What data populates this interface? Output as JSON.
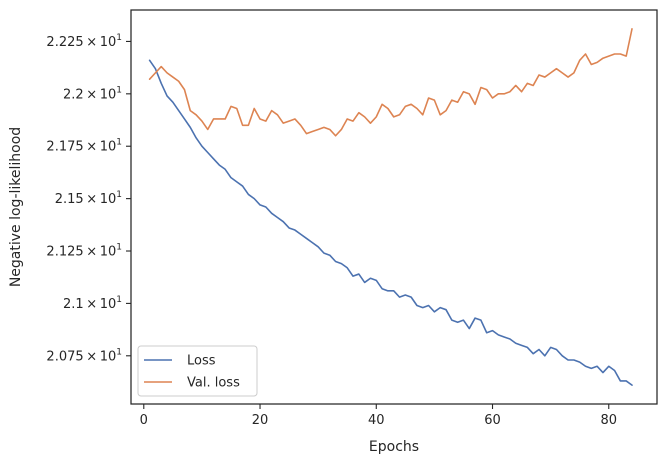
{
  "chart_data": {
    "type": "line",
    "xlabel": "Epochs",
    "ylabel": "Negative log-likelihood",
    "xlim": [
      -2.2,
      88.3
    ],
    "ylim": [
      20.52,
      22.4
    ],
    "x_ticks": [
      0,
      20,
      40,
      60,
      80
    ],
    "x_tick_labels": [
      "0",
      "20",
      "40",
      "60",
      "80"
    ],
    "y_ticks": [
      20.75,
      21.0,
      21.25,
      21.5,
      21.75,
      22.0,
      22.25
    ],
    "y_tick_labels": [
      {
        "mantissa": "2.075",
        "exp": "1"
      },
      {
        "mantissa": "2.1",
        "exp": "1"
      },
      {
        "mantissa": "2.125",
        "exp": "1"
      },
      {
        "mantissa": "2.15",
        "exp": "1"
      },
      {
        "mantissa": "2.175",
        "exp": "1"
      },
      {
        "mantissa": "2.2",
        "exp": "1"
      },
      {
        "mantissa": "2.225",
        "exp": "1"
      }
    ],
    "times_sign": "×",
    "base": "10",
    "grid": false,
    "legend_position": "lower-left",
    "series": [
      {
        "name": "Loss",
        "color": "#4c72b0",
        "x": [
          1,
          2,
          3,
          4,
          5,
          6,
          7,
          8,
          9,
          10,
          11,
          12,
          13,
          14,
          15,
          16,
          17,
          18,
          19,
          20,
          21,
          22,
          23,
          24,
          25,
          26,
          27,
          28,
          29,
          30,
          31,
          32,
          33,
          34,
          35,
          36,
          37,
          38,
          39,
          40,
          41,
          42,
          43,
          44,
          45,
          46,
          47,
          48,
          49,
          50,
          51,
          52,
          53,
          54,
          55,
          56,
          57,
          58,
          59,
          60,
          61,
          62,
          63,
          64,
          65,
          66,
          67,
          68,
          69,
          70,
          71,
          72,
          73,
          74,
          75,
          76,
          77,
          78,
          79,
          80,
          81,
          82,
          83,
          84
        ],
        "values": [
          22.16,
          22.12,
          22.05,
          21.99,
          21.96,
          21.92,
          21.88,
          21.84,
          21.79,
          21.75,
          21.72,
          21.69,
          21.66,
          21.64,
          21.6,
          21.58,
          21.56,
          21.52,
          21.5,
          21.47,
          21.46,
          21.43,
          21.41,
          21.39,
          21.36,
          21.35,
          21.33,
          21.31,
          21.29,
          21.27,
          21.24,
          21.23,
          21.2,
          21.19,
          21.17,
          21.13,
          21.14,
          21.1,
          21.12,
          21.11,
          21.07,
          21.06,
          21.06,
          21.03,
          21.04,
          21.03,
          20.99,
          20.98,
          20.99,
          20.96,
          20.98,
          20.97,
          20.92,
          20.91,
          20.92,
          20.88,
          20.93,
          20.92,
          20.86,
          20.87,
          20.85,
          20.84,
          20.83,
          20.81,
          20.8,
          20.79,
          20.76,
          20.78,
          20.75,
          20.79,
          20.78,
          20.75,
          20.73,
          20.73,
          20.72,
          20.7,
          20.69,
          20.7,
          20.67,
          20.7,
          20.68,
          20.63,
          20.63,
          20.61
        ]
      },
      {
        "name": "Val. loss",
        "color": "#dd8452",
        "x": [
          1,
          2,
          3,
          4,
          5,
          6,
          7,
          8,
          9,
          10,
          11,
          12,
          13,
          14,
          15,
          16,
          17,
          18,
          19,
          20,
          21,
          22,
          23,
          24,
          25,
          26,
          27,
          28,
          29,
          30,
          31,
          32,
          33,
          34,
          35,
          36,
          37,
          38,
          39,
          40,
          41,
          42,
          43,
          44,
          45,
          46,
          47,
          48,
          49,
          50,
          51,
          52,
          53,
          54,
          55,
          56,
          57,
          58,
          59,
          60,
          61,
          62,
          63,
          64,
          65,
          66,
          67,
          68,
          69,
          70,
          71,
          72,
          73,
          74,
          75,
          76,
          77,
          78,
          79,
          80,
          81,
          82,
          83,
          84
        ],
        "values": [
          22.07,
          22.1,
          22.13,
          22.1,
          22.08,
          22.06,
          22.02,
          21.92,
          21.9,
          21.87,
          21.83,
          21.88,
          21.88,
          21.88,
          21.94,
          21.93,
          21.85,
          21.85,
          21.93,
          21.88,
          21.87,
          21.92,
          21.9,
          21.86,
          21.87,
          21.88,
          21.85,
          21.81,
          21.82,
          21.83,
          21.84,
          21.83,
          21.8,
          21.83,
          21.88,
          21.87,
          21.91,
          21.89,
          21.86,
          21.89,
          21.95,
          21.93,
          21.89,
          21.9,
          21.94,
          21.95,
          21.93,
          21.9,
          21.98,
          21.97,
          21.9,
          21.92,
          21.97,
          21.96,
          22.01,
          22.0,
          21.95,
          22.03,
          22.02,
          21.98,
          22.0,
          22.0,
          22.01,
          22.04,
          22.01,
          22.05,
          22.04,
          22.09,
          22.08,
          22.1,
          22.12,
          22.1,
          22.08,
          22.1,
          22.16,
          22.19,
          22.14,
          22.15,
          22.17,
          22.18,
          22.19,
          22.19,
          22.18,
          22.31
        ]
      }
    ]
  }
}
